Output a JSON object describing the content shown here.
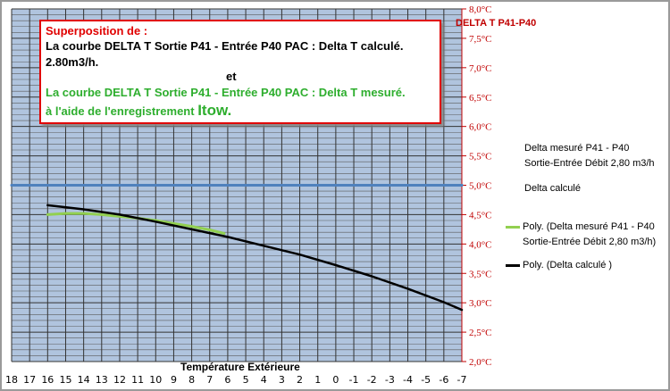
{
  "title_box": {
    "line1": "Superposition de :",
    "line2": "La courbe DELTA T  Sortie P41 - Entrée P40 PAC  : Delta T calculé.",
    "line3": "2.80m3/h.",
    "line4": "et",
    "line5": "La courbe DELTA T  Sortie P41 - Entrée P40 PAC  : Delta T mesuré.",
    "line6_prefix": "à l'aide de l'enregistrement ",
    "line6_brand": "Itow."
  },
  "chart_data": {
    "type": "line",
    "xlabel": "Température Extérieure",
    "ylabel": "DELTA T P41-P40",
    "x_ticks": [
      18,
      17,
      16,
      15,
      14,
      13,
      12,
      11,
      10,
      9,
      8,
      7,
      6,
      5,
      4,
      3,
      2,
      1,
      0,
      -1,
      -2,
      -3,
      -4,
      -5,
      -6,
      -7
    ],
    "x_reversed": true,
    "xlim": [
      18,
      -7
    ],
    "y_ticks": [
      "2,0°C",
      "2,5°C",
      "3,0°C",
      "3,5°C",
      "4,0°C",
      "4,5°C",
      "5,0°C",
      "5,5°C",
      "6,0°C",
      "6,5°C",
      "7,0°C",
      "7,5°C",
      "8,0°C"
    ],
    "ylim": [
      2.0,
      8.0
    ],
    "grid": true,
    "legend_position": "right",
    "series": [
      {
        "name": "Delta mesuré   P41 - P40 Sortie-Entrée Débit 2,80 m3/h",
        "color": "#4f81bd",
        "x": [
          18,
          -7
        ],
        "y": [
          5.0,
          5.0
        ],
        "show_marker": false
      },
      {
        "name": "Delta calculé",
        "color": "#4f81bd",
        "x": [
          18,
          -7
        ],
        "y": [
          5.0,
          5.0
        ],
        "show_marker": false
      },
      {
        "name": "Poly. (Delta mesuré   P41 - P40 Sortie-Entrée Débit 2,80 m3/h)",
        "color": "#92d050",
        "x": [
          16,
          15,
          14,
          13,
          12,
          11,
          10,
          9,
          8,
          7,
          6.2
        ],
        "y": [
          4.5,
          4.52,
          4.52,
          4.5,
          4.47,
          4.44,
          4.4,
          4.35,
          4.3,
          4.24,
          4.18
        ],
        "show_marker": true
      },
      {
        "name": "Poly. (Delta calculé  )",
        "color": "#000000",
        "x": [
          16,
          14,
          12,
          10,
          8,
          6,
          4,
          2,
          0,
          -2,
          -4,
          -6,
          -7
        ],
        "y": [
          4.66,
          4.59,
          4.5,
          4.38,
          4.25,
          4.12,
          3.97,
          3.82,
          3.64,
          3.45,
          3.24,
          3.01,
          2.88
        ],
        "show_marker": true
      }
    ],
    "legend": [
      {
        "text": "Delta mesuré   P41 - P40 Sortie-Entrée Débit 2,80 m3/h",
        "swatch": "none"
      },
      {
        "text": "Delta calculé",
        "swatch": "none"
      },
      {
        "text": "Poly. (Delta mesuré   P41 - P40 Sortie-Entrée Débit 2,80 m3/h)",
        "swatch": "#92d050"
      },
      {
        "text": "Poly. (Delta calculé  )",
        "swatch": "#000000"
      }
    ]
  }
}
